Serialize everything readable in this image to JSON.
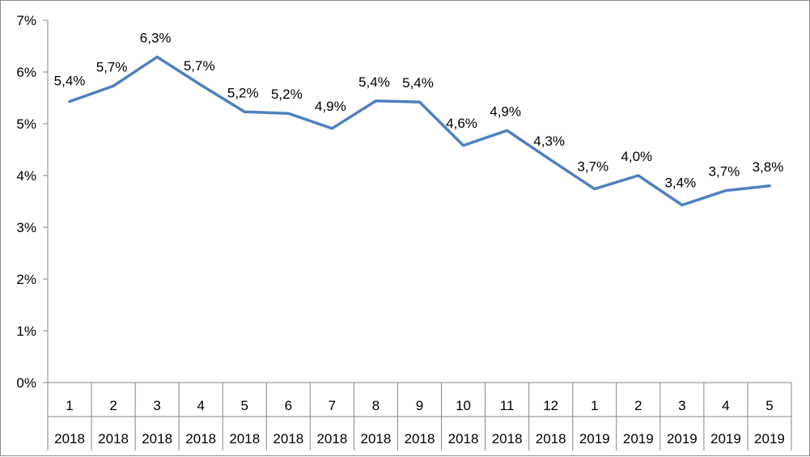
{
  "chart_data": {
    "type": "line",
    "title": "",
    "xlabel": "",
    "ylabel": "",
    "ylim": [
      0,
      7
    ],
    "y_ticks": [
      "0%",
      "1%",
      "2%",
      "3%",
      "4%",
      "5%",
      "6%",
      "7%"
    ],
    "grid": false,
    "legend": "none",
    "categories": [
      {
        "month": "1",
        "year": "2018"
      },
      {
        "month": "2",
        "year": "2018"
      },
      {
        "month": "3",
        "year": "2018"
      },
      {
        "month": "4",
        "year": "2018"
      },
      {
        "month": "5",
        "year": "2018"
      },
      {
        "month": "6",
        "year": "2018"
      },
      {
        "month": "7",
        "year": "2018"
      },
      {
        "month": "8",
        "year": "2018"
      },
      {
        "month": "9",
        "year": "2018"
      },
      {
        "month": "10",
        "year": "2018"
      },
      {
        "month": "11",
        "year": "2018"
      },
      {
        "month": "12",
        "year": "2018"
      },
      {
        "month": "1",
        "year": "2019"
      },
      {
        "month": "2",
        "year": "2019"
      },
      {
        "month": "3",
        "year": "2019"
      },
      {
        "month": "4",
        "year": "2019"
      },
      {
        "month": "5",
        "year": "2019"
      }
    ],
    "series": [
      {
        "color": "#4f81bd",
        "values": [
          5.43,
          5.73,
          6.29,
          5.75,
          5.23,
          5.2,
          4.91,
          5.44,
          5.42,
          4.58,
          4.87,
          4.3,
          3.74,
          4.0,
          3.43,
          3.71,
          3.8
        ],
        "labels": [
          "5,4%",
          "5,7%",
          "6,3%",
          "5,7%",
          "5,2%",
          "5,2%",
          "4,9%",
          "5,4%",
          "5,4%",
          "4,6%",
          "4,9%",
          "4,3%",
          "3,7%",
          "4,0%",
          "3,4%",
          "3,7%",
          "3,8%"
        ]
      }
    ]
  }
}
